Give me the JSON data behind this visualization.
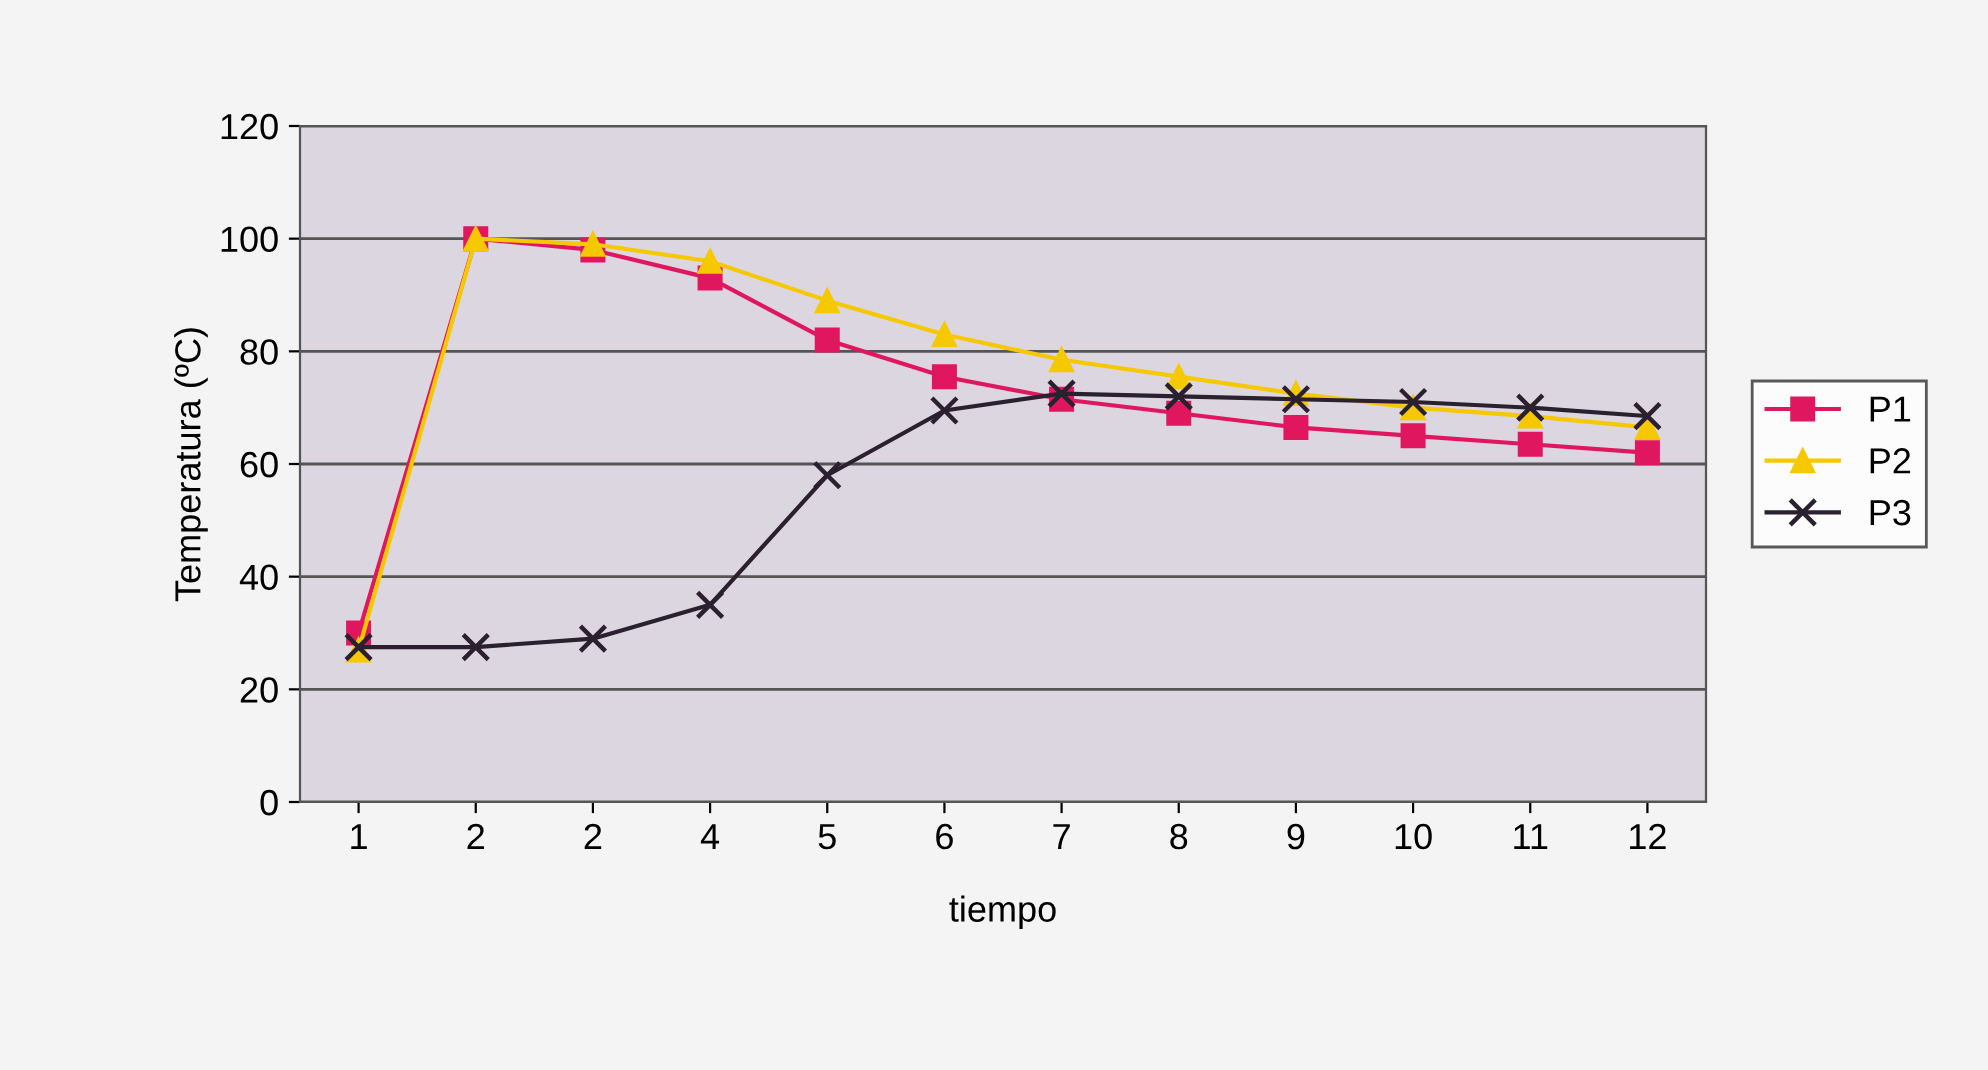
{
  "chart_data": {
    "type": "line",
    "xlabel": "tiempo",
    "ylabel": "Temperatura (ºC)",
    "categories": [
      "1",
      "2",
      "2",
      "4",
      "5",
      "6",
      "7",
      "8",
      "9",
      "10",
      "11",
      "12"
    ],
    "series": [
      {
        "name": "P1",
        "color": "#e0175f",
        "marker": "square",
        "values": [
          30,
          100,
          98,
          93,
          82,
          75.5,
          71.5,
          69,
          66.5,
          65,
          63.5,
          62
        ]
      },
      {
        "name": "P2",
        "color": "#f5c800",
        "marker": "triangle",
        "values": [
          27,
          100,
          99,
          96,
          89,
          83,
          78.5,
          75.5,
          72.5,
          70,
          68.5,
          66.5
        ]
      },
      {
        "name": "P3",
        "color": "#2a2030",
        "marker": "cross",
        "values": [
          27.5,
          27.5,
          29,
          35,
          58,
          69.5,
          72.5,
          72,
          71.5,
          71,
          70,
          68.5
        ]
      }
    ],
    "ylim": [
      0,
      120
    ],
    "yticks": [
      0,
      20,
      40,
      60,
      80,
      100,
      120
    ],
    "grid": "y",
    "legend": "right"
  }
}
